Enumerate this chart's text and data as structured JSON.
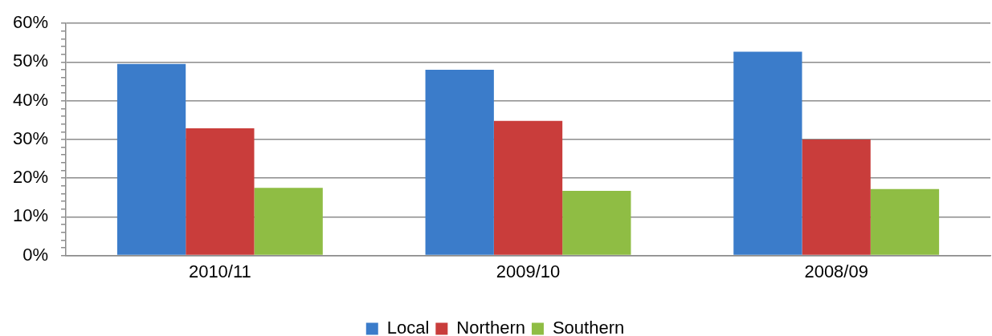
{
  "chart_data": {
    "type": "bar",
    "categories": [
      "2010/11",
      "2009/10",
      "2008/09"
    ],
    "series": [
      {
        "name": "Local",
        "color": "#3b7cca",
        "values": [
          49.5,
          48,
          52.7
        ]
      },
      {
        "name": "Northern",
        "color": "#c93d3b",
        "values": [
          32.9,
          34.8,
          30
        ]
      },
      {
        "name": "Southern",
        "color": "#8fbd44",
        "values": [
          17.5,
          16.7,
          17.2
        ]
      }
    ],
    "ylim": [
      0,
      60
    ],
    "yticks": [
      {
        "value": 0,
        "label": "0%"
      },
      {
        "value": 2,
        "label": null
      },
      {
        "value": 4,
        "label": null
      },
      {
        "value": 6,
        "label": null
      },
      {
        "value": 8,
        "label": null
      },
      {
        "value": 10,
        "label": "10%"
      },
      {
        "value": 12,
        "label": null
      },
      {
        "value": 14,
        "label": null
      },
      {
        "value": 16,
        "label": null
      },
      {
        "value": 18,
        "label": null
      },
      {
        "value": 20,
        "label": "20%"
      },
      {
        "value": 22,
        "label": null
      },
      {
        "value": 24,
        "label": null
      },
      {
        "value": 26,
        "label": null
      },
      {
        "value": 28,
        "label": null
      },
      {
        "value": 30,
        "label": "30%"
      },
      {
        "value": 32,
        "label": null
      },
      {
        "value": 34,
        "label": null
      },
      {
        "value": 36,
        "label": null
      },
      {
        "value": 38,
        "label": null
      },
      {
        "value": 40,
        "label": "40%"
      },
      {
        "value": 42,
        "label": null
      },
      {
        "value": 44,
        "label": null
      },
      {
        "value": 46,
        "label": null
      },
      {
        "value": 48,
        "label": null
      },
      {
        "value": 50,
        "label": "50%"
      },
      {
        "value": 52,
        "label": null
      },
      {
        "value": 54,
        "label": null
      },
      {
        "value": 56,
        "label": null
      },
      {
        "value": 58,
        "label": null
      },
      {
        "value": 60,
        "label": "60%"
      }
    ],
    "grid": "y",
    "legend": "bottom"
  }
}
